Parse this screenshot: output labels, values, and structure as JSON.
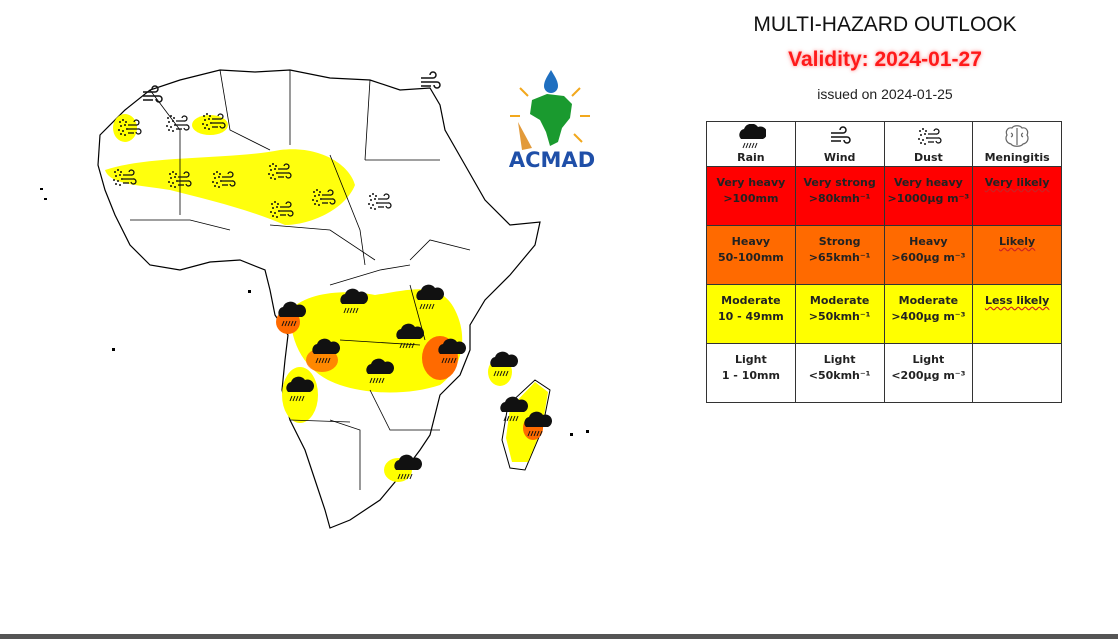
{
  "header": {
    "title": "MULTI-HAZARD OUTLOOK",
    "validity": "Validity: 2024-01-27",
    "issued": "issued on 2024-01-25"
  },
  "logo": {
    "text": "ACMAD"
  },
  "legend": {
    "columns": [
      {
        "name": "Rain",
        "icon": "rain-cloud-icon"
      },
      {
        "name": "Wind",
        "icon": "wind-icon"
      },
      {
        "name": "Dust",
        "icon": "dust-icon"
      },
      {
        "name": "Meningitis",
        "icon": "brain-icon"
      }
    ],
    "rows": [
      {
        "color": "#ff0000",
        "cells": [
          [
            "Very heavy",
            ">100mm"
          ],
          [
            "Very strong",
            ">80kmh⁻¹"
          ],
          [
            "Very heavy",
            ">1000µg m⁻³"
          ],
          [
            "Very likely",
            ""
          ]
        ]
      },
      {
        "color": "#ff6a00",
        "cells": [
          [
            "Heavy",
            "50-100mm"
          ],
          [
            "Strong",
            ">65kmh⁻¹"
          ],
          [
            "Heavy",
            ">600µg m⁻³"
          ],
          [
            "Likely",
            ""
          ]
        ]
      },
      {
        "color": "#ffff00",
        "cells": [
          [
            "Moderate",
            "10 - 49mm"
          ],
          [
            "Moderate",
            ">50kmh⁻¹"
          ],
          [
            "Moderate",
            ">400µg m⁻³"
          ],
          [
            "Less likely",
            ""
          ]
        ]
      },
      {
        "color": "#ffffff",
        "cells": [
          [
            "Light",
            "1 - 10mm"
          ],
          [
            "Light",
            "<50kmh⁻¹"
          ],
          [
            "Light",
            "<200µg m⁻³"
          ],
          [
            "",
            ""
          ]
        ]
      }
    ]
  },
  "map": {
    "colors": {
      "land": "#ffffff",
      "border": "#000000",
      "moderate": "#ffff00",
      "heavy": "#ff6a00"
    },
    "zones": [
      {
        "name": "sahel-band",
        "level": "moderate"
      },
      {
        "name": "central-africa",
        "level": "moderate"
      },
      {
        "name": "east-africa-coast",
        "level": "heavy"
      },
      {
        "name": "gabon-coast",
        "level": "heavy"
      },
      {
        "name": "madagascar",
        "level": "moderate"
      },
      {
        "name": "southern-africa",
        "level": "moderate"
      }
    ]
  }
}
